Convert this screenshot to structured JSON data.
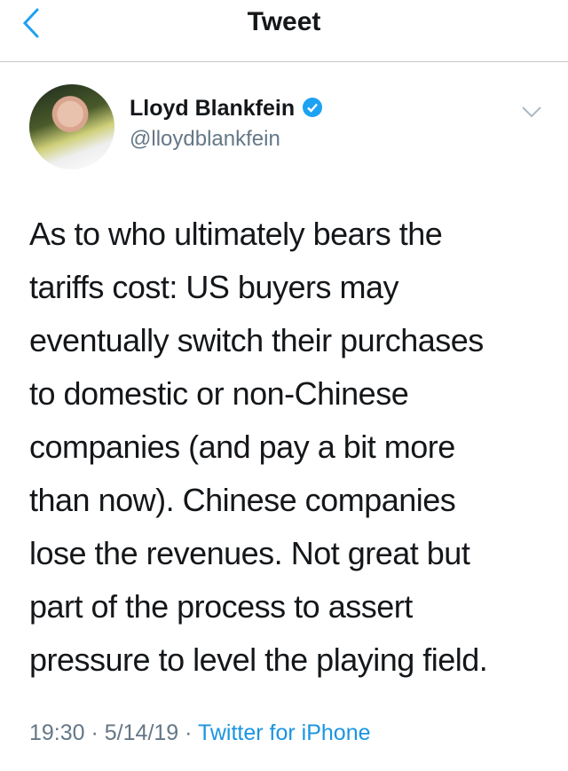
{
  "header": {
    "title": "Tweet",
    "back_icon": "chevron-left-icon"
  },
  "author": {
    "name": "Lloyd Blankfein",
    "handle": "@lloydblankfein",
    "verified": true
  },
  "tweet": {
    "lines": [
      "As to who ultimately bears the",
      "tariffs cost: US buyers may",
      "eventually switch their purchases",
      "to domestic or non-Chinese",
      "companies (and pay a bit more",
      "than now). Chinese companies",
      "lose the revenues. Not great but",
      "part of the process to assert",
      "pressure to level the playing field."
    ]
  },
  "meta": {
    "time": "19:30",
    "date": "5/14/19",
    "sep": " · ",
    "source": "Twitter for iPhone"
  },
  "colors": {
    "accent": "#1da1f2",
    "text": "#14171a",
    "secondary": "#657786"
  }
}
